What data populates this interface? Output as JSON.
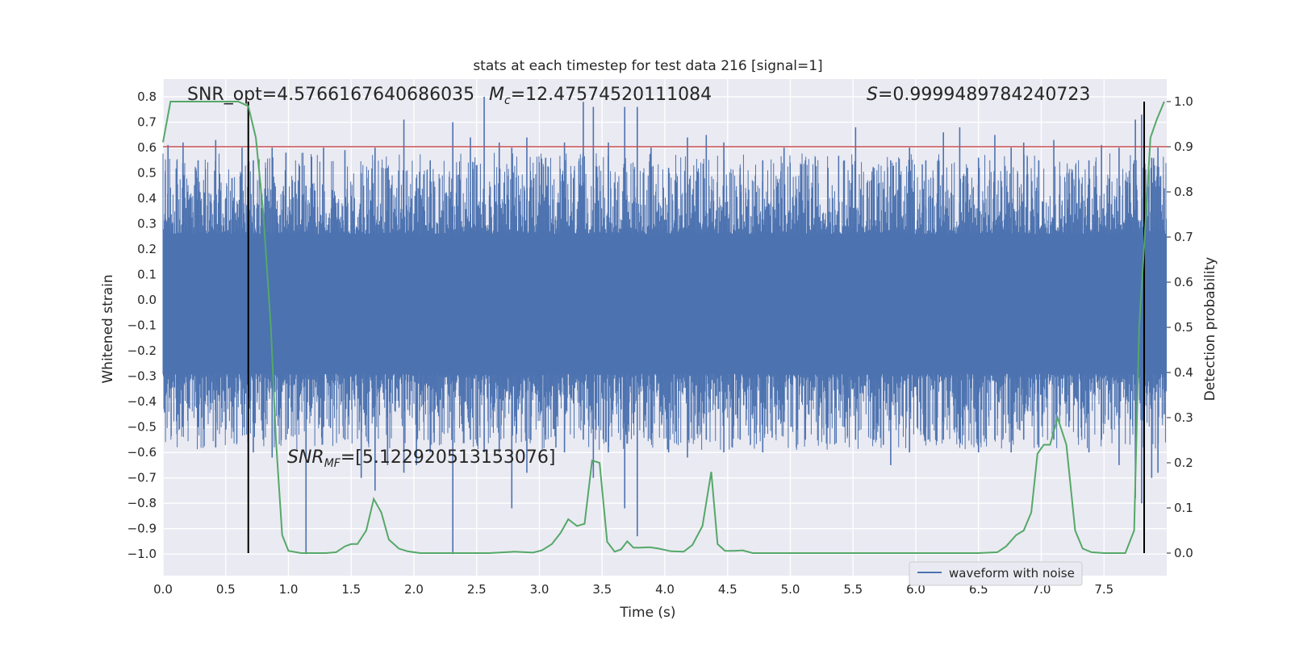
{
  "chart_data": {
    "type": "line",
    "title": "stats at each timestep for test data 216 [signal=1]",
    "xlabel": "Time (s)",
    "ylabel_left": "Whitened strain",
    "ylabel_right": "Detection probability",
    "xlim": [
      0.0,
      8.0
    ],
    "ylim_left": [
      -1.085,
      0.87
    ],
    "ylim_right": [
      -0.05,
      1.05
    ],
    "xticks": [
      "0.0",
      "0.5",
      "1.0",
      "1.5",
      "2.0",
      "2.5",
      "3.0",
      "3.5",
      "4.0",
      "4.5",
      "5.0",
      "5.5",
      "6.0",
      "6.5",
      "7.0",
      "7.5"
    ],
    "yticks_left": [
      "0.8",
      "0.7",
      "0.6",
      "0.5",
      "0.4",
      "0.3",
      "0.2",
      "0.1",
      "0.0",
      "−0.1",
      "−0.2",
      "−0.3",
      "−0.4",
      "−0.5",
      "−0.6",
      "−0.7",
      "−0.8",
      "−0.9",
      "−1.0"
    ],
    "yticks_right": [
      "1.0",
      "0.9",
      "0.8",
      "0.7",
      "0.6",
      "0.5",
      "0.4",
      "0.3",
      "0.2",
      "0.1",
      "0.0"
    ],
    "threshold_right": 0.9,
    "vlines_x": [
      0.68,
      7.82
    ],
    "annotations": {
      "snr_opt": "SNR_opt=4.5766167640686035",
      "mc_label": "M",
      "mc_sub": "c",
      "mc_value": "=12.47574520111084",
      "s_label": "S",
      "s_value": "=0.9999489784240723",
      "snrmf_label": "SNR",
      "snrmf_sub": "MF",
      "snrmf_value": "=[5.122920513153076]"
    },
    "legend": [
      "waveform with noise"
    ],
    "series": [
      {
        "name": "waveform with noise",
        "style": "vertical-noise",
        "spikes": [
          [
            0.04,
            0.61,
            -0.3
          ],
          [
            0.16,
            0.62,
            -0.45
          ],
          [
            0.28,
            0.55,
            -0.5
          ],
          [
            0.42,
            0.63,
            -0.58
          ],
          [
            0.55,
            0.48,
            -0.4
          ],
          [
            0.63,
            0.6,
            -0.45
          ],
          [
            0.72,
            0.55,
            -0.6
          ],
          [
            0.87,
            0.6,
            -0.62
          ],
          [
            0.98,
            0.58,
            -0.55
          ],
          [
            1.14,
            0.45,
            -1.0
          ],
          [
            1.28,
            0.6,
            -0.5
          ],
          [
            1.45,
            0.59,
            -0.55
          ],
          [
            1.58,
            0.5,
            -0.7
          ],
          [
            1.69,
            0.6,
            -0.75
          ],
          [
            1.79,
            0.52,
            -0.65
          ],
          [
            1.92,
            0.71,
            -0.68
          ],
          [
            2.02,
            0.48,
            -0.65
          ],
          [
            2.13,
            0.55,
            -0.6
          ],
          [
            2.31,
            0.7,
            -1.0
          ],
          [
            2.45,
            0.64,
            -0.55
          ],
          [
            2.56,
            0.8,
            -0.6
          ],
          [
            2.68,
            0.62,
            -0.6
          ],
          [
            2.78,
            0.6,
            -0.82
          ],
          [
            2.9,
            0.64,
            -0.68
          ],
          [
            3.05,
            0.56,
            -0.55
          ],
          [
            3.2,
            0.62,
            -0.6
          ],
          [
            3.35,
            0.78,
            -0.55
          ],
          [
            3.43,
            0.76,
            -0.7
          ],
          [
            3.55,
            0.62,
            -0.6
          ],
          [
            3.68,
            0.76,
            -0.82
          ],
          [
            3.78,
            0.76,
            -0.93
          ],
          [
            3.89,
            0.6,
            -0.55
          ],
          [
            4.03,
            0.52,
            -0.6
          ],
          [
            4.18,
            0.64,
            -0.62
          ],
          [
            4.33,
            0.65,
            -0.55
          ],
          [
            4.47,
            0.62,
            -0.6
          ],
          [
            4.6,
            0.52,
            -0.55
          ],
          [
            4.78,
            0.55,
            -0.6
          ],
          [
            4.95,
            0.6,
            -0.48
          ],
          [
            5.12,
            0.55,
            -0.55
          ],
          [
            5.3,
            0.52,
            -0.5
          ],
          [
            5.43,
            0.55,
            -0.5
          ],
          [
            5.52,
            0.68,
            -0.55
          ],
          [
            5.66,
            0.52,
            -0.55
          ],
          [
            5.8,
            0.55,
            -0.65
          ],
          [
            5.95,
            0.6,
            -0.6
          ],
          [
            6.08,
            0.55,
            -0.5
          ],
          [
            6.22,
            0.66,
            -0.55
          ],
          [
            6.35,
            0.68,
            -0.55
          ],
          [
            6.5,
            0.56,
            -0.6
          ],
          [
            6.63,
            0.65,
            -0.55
          ],
          [
            6.76,
            0.6,
            -0.6
          ],
          [
            6.86,
            0.62,
            -0.55
          ],
          [
            6.98,
            0.55,
            -0.58
          ],
          [
            7.1,
            0.63,
            -0.55
          ],
          [
            7.22,
            0.5,
            -0.5
          ],
          [
            7.38,
            0.55,
            -0.6
          ],
          [
            7.48,
            0.61,
            -0.55
          ],
          [
            7.62,
            0.6,
            -0.65
          ],
          [
            7.75,
            0.71,
            -0.78
          ],
          [
            7.8,
            0.73,
            -0.8
          ],
          [
            7.88,
            0.56,
            -0.7
          ],
          [
            7.93,
            0.6,
            -0.68
          ],
          [
            7.98,
            0.44,
            -0.45
          ]
        ]
      },
      {
        "name": "detection probability",
        "axis": "right",
        "x": [
          0.0,
          0.06,
          0.12,
          0.2,
          0.3,
          0.4,
          0.5,
          0.6,
          0.68,
          0.74,
          0.8,
          0.86,
          0.9,
          0.95,
          1.0,
          1.1,
          1.2,
          1.3,
          1.38,
          1.45,
          1.5,
          1.55,
          1.62,
          1.68,
          1.74,
          1.8,
          1.88,
          1.95,
          2.05,
          2.2,
          2.4,
          2.6,
          2.8,
          2.95,
          3.02,
          3.1,
          3.17,
          3.23,
          3.3,
          3.36,
          3.42,
          3.48,
          3.54,
          3.6,
          3.65,
          3.7,
          3.75,
          3.8,
          3.88,
          3.95,
          4.05,
          4.15,
          4.22,
          4.3,
          4.37,
          4.42,
          4.48,
          4.55,
          4.62,
          4.7,
          5.0,
          5.4,
          5.8,
          6.2,
          6.5,
          6.65,
          6.72,
          6.8,
          6.86,
          6.92,
          6.97,
          7.02,
          7.07,
          7.13,
          7.2,
          7.27,
          7.33,
          7.4,
          7.5,
          7.6,
          7.67,
          7.74,
          7.78,
          7.82,
          7.87,
          7.92,
          7.98
        ],
        "y": [
          0.91,
          1.0,
          1.0,
          1.0,
          1.0,
          1.0,
          1.0,
          1.0,
          0.99,
          0.92,
          0.75,
          0.5,
          0.25,
          0.04,
          0.005,
          0.0,
          0.0,
          0.0,
          0.002,
          0.015,
          0.02,
          0.02,
          0.05,
          0.12,
          0.09,
          0.03,
          0.01,
          0.004,
          0.0,
          0.0,
          0.0,
          0.0,
          0.003,
          0.001,
          0.006,
          0.02,
          0.045,
          0.075,
          0.06,
          0.065,
          0.205,
          0.2,
          0.025,
          0.003,
          0.008,
          0.026,
          0.012,
          0.012,
          0.013,
          0.01,
          0.004,
          0.003,
          0.018,
          0.06,
          0.18,
          0.02,
          0.005,
          0.005,
          0.006,
          0.0,
          0.0,
          0.0,
          0.0,
          0.0,
          0.0,
          0.002,
          0.015,
          0.04,
          0.05,
          0.09,
          0.22,
          0.24,
          0.24,
          0.3,
          0.24,
          0.05,
          0.01,
          0.002,
          0.0,
          0.0,
          0.0,
          0.05,
          0.5,
          0.68,
          0.92,
          0.96,
          1.0
        ]
      }
    ]
  }
}
